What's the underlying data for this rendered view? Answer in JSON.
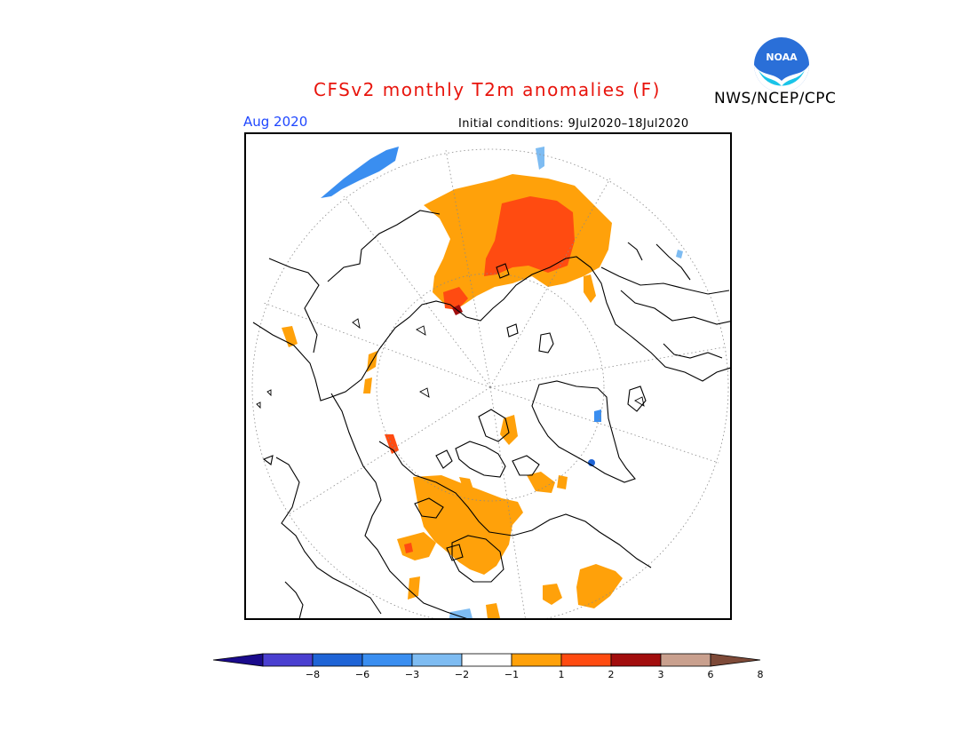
{
  "header": {
    "title": "CFSv2 monthly T2m anomalies (F)",
    "agency": "NWS/NCEP/CPC",
    "month": "Aug 2020",
    "initial_conditions": "Initial conditions: 9Jul2020–18Jul2020",
    "logo_text": "NOAA"
  },
  "map": {
    "projection": "north-polar-stereographic",
    "variable": "2m temperature anomaly",
    "units": "F"
  },
  "legend": {
    "labels": [
      "−8",
      "−6",
      "−3",
      "−2",
      "−1",
      "1",
      "2",
      "3",
      "6",
      "8"
    ],
    "colors": [
      "#1a0a8c",
      "#4a3fd0",
      "#1f64d6",
      "#3a8ef0",
      "#7ebcf2",
      "#ffffff",
      "#ffa10a",
      "#ff4b11",
      "#a20d0d",
      "#c9a08e",
      "#7e4a38"
    ]
  }
}
